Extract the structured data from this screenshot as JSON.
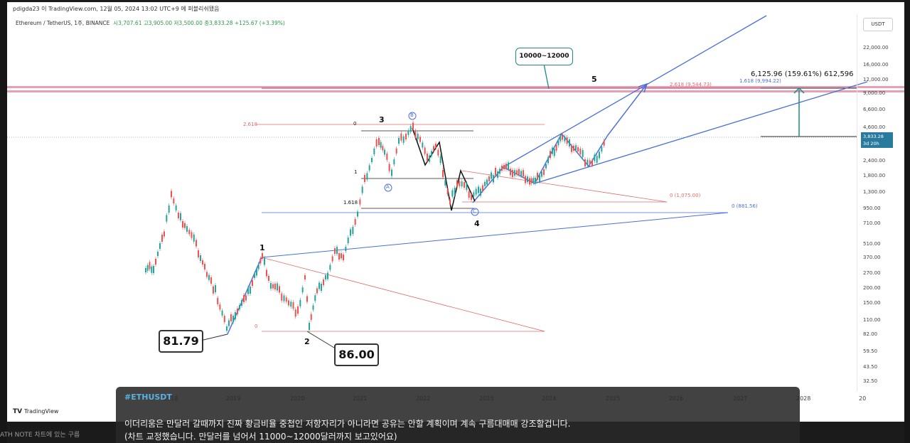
{
  "header": {
    "author_line": "pdigda23 이 TradingView.com, 12월 05, 2024 13:02 UTC+9 에 퍼블리쉬됐음",
    "symbol_line_prefix": "Ethereum / TetherUS, 1주, BINANCE",
    "ohlc": "시3,707.61 고3,905.00 저3,500.00 종3,833.28 +125.67 (+3.39%)"
  },
  "price_axis": {
    "currency_button": "USDT",
    "labels": [
      "22,000.00",
      "16,000.00",
      "12,000.00",
      "9,000.00",
      "6,600.00",
      "4,600.00",
      "2,400.00",
      "1,800.00",
      "1,300.00",
      "950.00",
      "710.00",
      "510.00",
      "370.00",
      "270.00",
      "200.00",
      "150.00",
      "110.00",
      "82.00",
      "59.50",
      "43.50",
      "32.50"
    ],
    "current_price": "3,833.28",
    "countdown": "3d 20h"
  },
  "time_axis": {
    "labels": [
      "2018",
      "2019",
      "2020",
      "2021",
      "2022",
      "2023",
      "2024",
      "2025",
      "2026",
      "2027",
      "2028",
      "20"
    ]
  },
  "annotations": {
    "wave_labels": [
      "1",
      "2",
      "3",
      "4",
      "5"
    ],
    "low_1": "81.79",
    "low_2": "86.00",
    "target_box": "10000~12000",
    "projection": "6,125.96 (159.61%) 612,596",
    "fib_2618_red": "2.618 (9,544.73)",
    "fib_1618_blue": "1.618 (9,994.22)",
    "fib_left_2618": "2.618",
    "fib_0_top": "0",
    "fib_1": "1",
    "fib_1618": "1.618",
    "fib_0_1075": "0 (1,075.00)",
    "fib_0_881": "0 (881.56)",
    "fib_0_bottom": "0",
    "circle_a": "A",
    "circle_b": "B",
    "circle_c": "C"
  },
  "brand": {
    "logo_text": "TradingView"
  },
  "caption": {
    "hashtag": "#ETHUSDT",
    "line1": "이더리움은 만달러 갈때까지 진짜 황금비율 중첩인 저항자리가 아니라면 공유는 안할 계획이며 계속 구름대매매 강조할겁니다.",
    "line2": "(차트 교정했습니다. 만달러를 넘어서 11000~12000달러까지 보고있어요)"
  },
  "background_text": "ATH NOTE 차트에 있는 구름",
  "colors": {
    "bull": "#26a69a",
    "bear": "#ef5350",
    "blue_line": "#4a6fdc",
    "red_line": "#e06b6b",
    "pink_band": "#e8a0b4",
    "teal": "#1b8a8a"
  }
}
